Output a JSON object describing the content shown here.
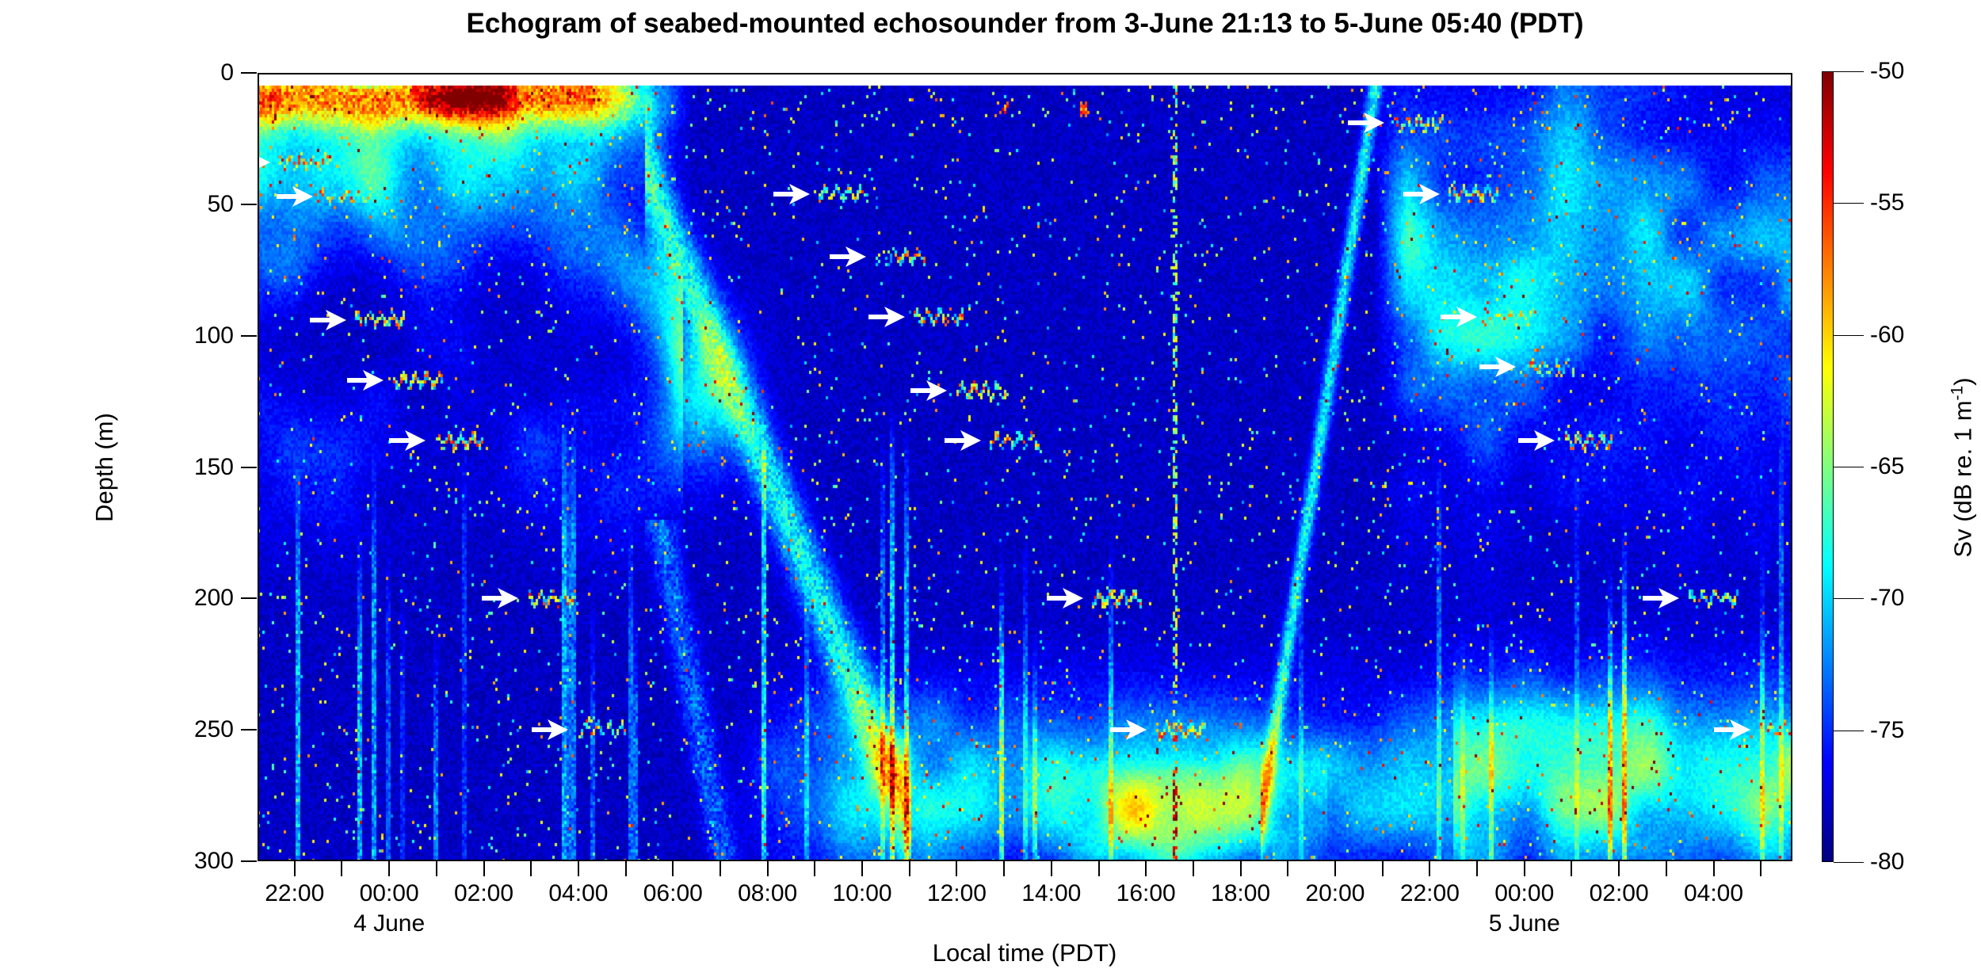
{
  "chart_data": {
    "type": "heatmap",
    "title": "Echogram of seabed-mounted echosounder from 3-June 21:13 to 5-June 05:40 (PDT)",
    "xlabel": "Local time (PDT)",
    "ylabel": "Depth (m)",
    "x_axis": {
      "start_time": "3-June 21:13",
      "end_time": "5-June 05:40",
      "duration_hours": 32.45,
      "first_major_tick_offset_hours": 0.7833,
      "major_tick_interval_hours": 2,
      "minor_tick_interval_hours": 1,
      "major_tick_labels": [
        "22:00",
        "00:00",
        "02:00",
        "04:00",
        "06:00",
        "08:00",
        "10:00",
        "12:00",
        "14:00",
        "16:00",
        "18:00",
        "20:00",
        "22:00",
        "00:00",
        "02:00",
        "04:00"
      ],
      "date_labels": [
        {
          "label": "4 June",
          "offset_hours": 2.7833
        },
        {
          "label": "5 June",
          "offset_hours": 26.7833
        }
      ]
    },
    "y_axis": {
      "min": 0,
      "max": 300,
      "tick_interval": 50,
      "tick_labels": [
        "0",
        "50",
        "100",
        "150",
        "200",
        "250",
        "300"
      ]
    },
    "colorbar": {
      "label_prefix": "Sv (dB re. 1 m",
      "label_superscript": "-1",
      "label_suffix": ")",
      "max": -50,
      "min": -80,
      "tick_labels": [
        "-50",
        "-55",
        "-60",
        "-65",
        "-70",
        "-75",
        "-80"
      ],
      "colormap": "jet",
      "gradient_stops_bottom_to_top": [
        "#000080",
        "#0000ff",
        "#0080ff",
        "#00ffff",
        "#80ff80",
        "#ffff00",
        "#ff8000",
        "#ff0000",
        "#800000"
      ]
    },
    "annotation_arrows": {
      "description": "White arrows marking fish-school traces",
      "color": "#ffffff",
      "points": [
        {
          "t_hours": 0.27,
          "depth_m": 34
        },
        {
          "t_hours": 1.17,
          "depth_m": 47
        },
        {
          "t_hours": 1.88,
          "depth_m": 94
        },
        {
          "t_hours": 2.66,
          "depth_m": 117
        },
        {
          "t_hours": 3.55,
          "depth_m": 140
        },
        {
          "t_hours": 5.51,
          "depth_m": 200
        },
        {
          "t_hours": 6.57,
          "depth_m": 250
        },
        {
          "t_hours": 11.67,
          "depth_m": 46
        },
        {
          "t_hours": 12.86,
          "depth_m": 70
        },
        {
          "t_hours": 13.68,
          "depth_m": 93
        },
        {
          "t_hours": 14.57,
          "depth_m": 121
        },
        {
          "t_hours": 15.29,
          "depth_m": 140
        },
        {
          "t_hours": 17.45,
          "depth_m": 200
        },
        {
          "t_hours": 18.79,
          "depth_m": 250
        },
        {
          "t_hours": 23.82,
          "depth_m": 19
        },
        {
          "t_hours": 24.99,
          "depth_m": 46
        },
        {
          "t_hours": 25.78,
          "depth_m": 93
        },
        {
          "t_hours": 26.6,
          "depth_m": 112
        },
        {
          "t_hours": 27.42,
          "depth_m": 140
        },
        {
          "t_hours": 30.06,
          "depth_m": 200
        },
        {
          "t_hours": 31.57,
          "depth_m": 250
        }
      ]
    },
    "bright_marks": [
      {
        "t_hours": 15.8,
        "depth_m": 13
      },
      {
        "t_hours": 17.5,
        "depth_m": 14
      }
    ],
    "phenomena": [
      "Strong near-surface scattering (0-30 m) during night of 3-4 June",
      "Scattering layer descends from surface toward 150-300 m at dawn (~05:30-08:00)",
      "Dense deep scattering layer at 230-300 m during daytime, strongest 16:00-19:00",
      "Scattering layer ascends from ~280 m to the surface at dusk (~19:00-21:00)",
      "Dispersed scattering 20-160 m during night of 4-5 June",
      "White arrows mark individual fish-school traces"
    ]
  }
}
